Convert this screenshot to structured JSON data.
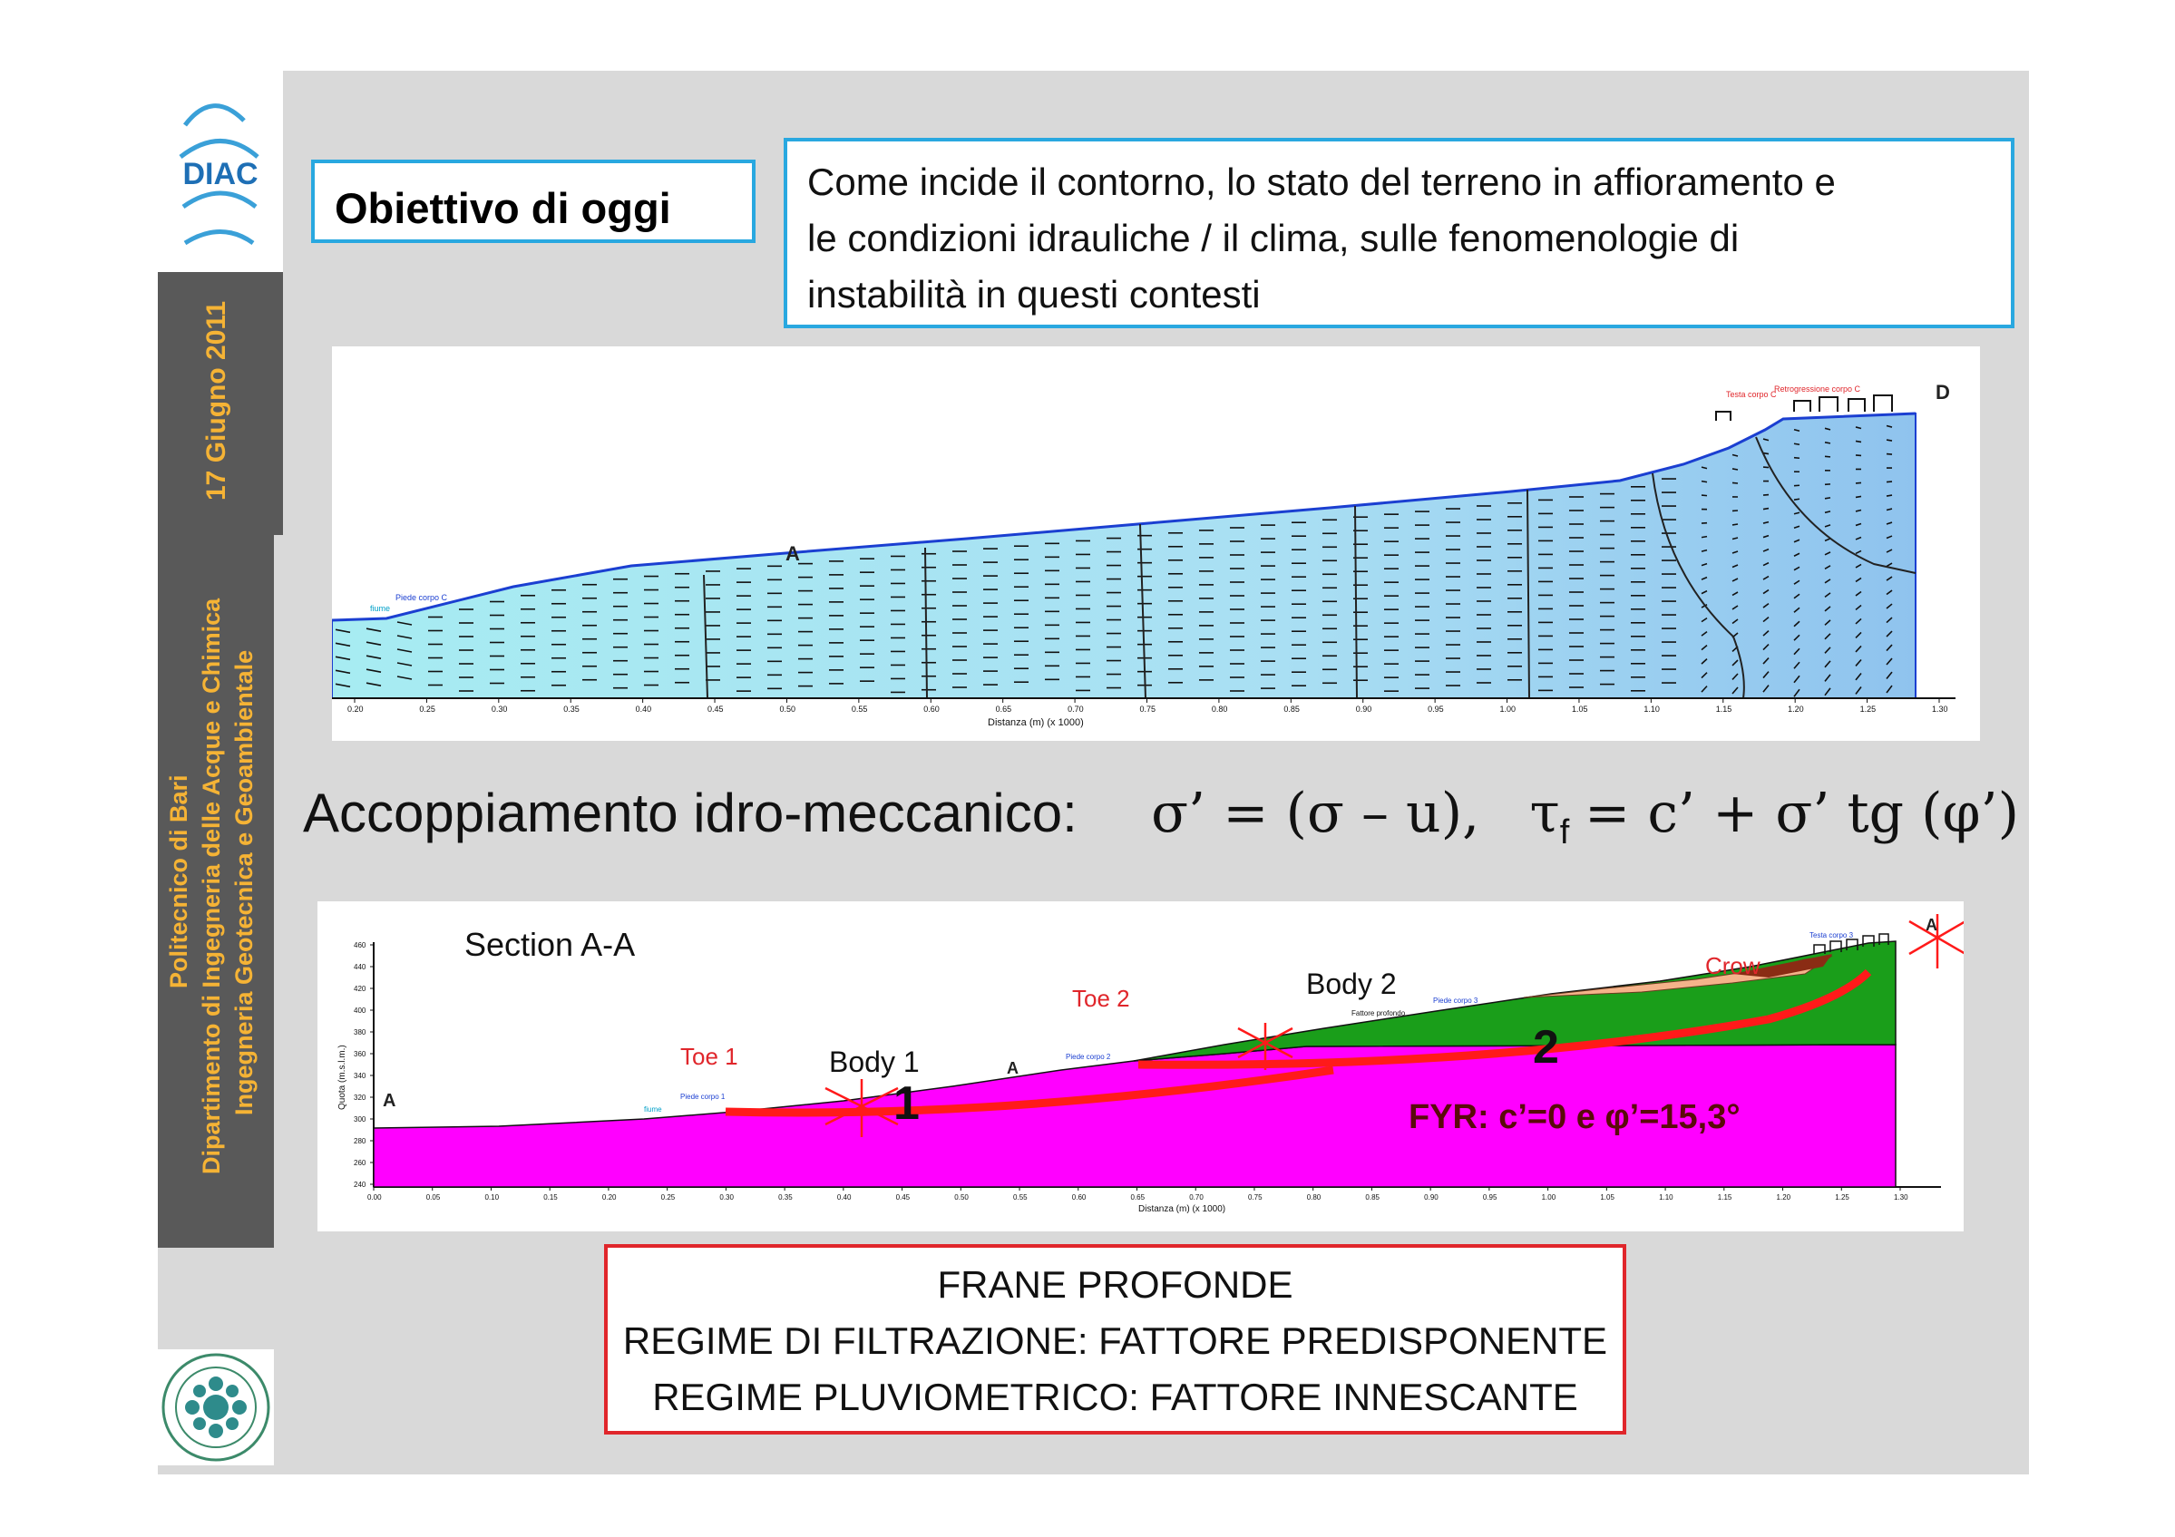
{
  "sidebar": {
    "logo_text": "DIAC",
    "date": "17 Giugno 2011",
    "institution_lines": [
      "Politecnico di Bari",
      "Dipartimento di Ingegneria delle Acque e Chimica",
      "Ingegneria Geotecnica e Geoambientale"
    ]
  },
  "header": {
    "objective_label": "Obiettivo di oggi",
    "description_lines": [
      "Come incide il contorno, lo stato del terreno in affioramento e",
      "le condizioni idrauliche  / il clima, sulle fenomenologie di",
      "instabilità in questi contesti"
    ]
  },
  "figure_top": {
    "label_a": "A",
    "label_d": "D",
    "label_piede": "Piede corpo C",
    "label_fiume": "fiume",
    "label_testa": "Testa corpo C",
    "label_retro": "Retrogressione corpo C",
    "xlabel": "Distanza (m) (x 1000)",
    "ticks": [
      "0.20",
      "0.25",
      "0.30",
      "0.35",
      "0.40",
      "0.45",
      "0.50",
      "0.55",
      "0.60",
      "0.65",
      "0.70",
      "0.75",
      "0.80",
      "0.85",
      "0.90",
      "0.95",
      "1.00",
      "1.05",
      "1.10",
      "1.15",
      "1.20",
      "1.25",
      "1.30"
    ]
  },
  "equation": {
    "prefix": "Accoppiamento idro-meccanico:",
    "formula_1": "σ’ = (σ – u),",
    "tau": "τ",
    "sub_f": "f",
    "formula_2": "= c’ + σ’ tg (φ’)"
  },
  "figure_bottom": {
    "section_title": "Section A-A",
    "toe1": "Toe 1",
    "toe2": "Toe 2",
    "body1": "Body 1",
    "body2": "Body 2",
    "crow": "Crow",
    "num1": "1",
    "num2": "2",
    "fyr": "FYR: c’=0 e φ’=15,3°",
    "label_a": "A",
    "label_piede1": "Piede corpo 1",
    "label_piede2": "Piede corpo 2",
    "label_piede3": "Piede corpo 3",
    "label_fattore": "Fattore profondo",
    "label_testa": "Testa corpo 3",
    "label_fiume": "fiume",
    "ylabel": "Quota (m.s.l.m.)",
    "xlabel": "Distanza (m) (x 1000)",
    "ticks": [
      "0.00",
      "0.05",
      "0.10",
      "0.15",
      "0.20",
      "0.25",
      "0.30",
      "0.35",
      "0.40",
      "0.45",
      "0.50",
      "0.55",
      "0.60",
      "0.65",
      "0.70",
      "0.75",
      "0.80",
      "0.85",
      "0.90",
      "0.95",
      "1.00",
      "1.05",
      "1.10",
      "1.15",
      "1.20",
      "1.25",
      "1.30"
    ],
    "yticks": [
      "460",
      "440",
      "420",
      "400",
      "380",
      "360",
      "340",
      "320",
      "300",
      "280",
      "260",
      "240"
    ]
  },
  "conclusion": {
    "lines": [
      "FRANE PROFONDE",
      "REGIME DI FILTRAZIONE: FATTORE PREDISPONENTE",
      "REGIME PLUVIOMETRICO: FATTORE INNESCANTE"
    ]
  },
  "colors": {
    "accent_blue": "#29a8e0",
    "accent_red": "#e0262b",
    "sidebar_gray": "#595959",
    "sidebar_text": "#f5b335",
    "magenta": "#ff00ff",
    "green": "#1a9e1a"
  }
}
